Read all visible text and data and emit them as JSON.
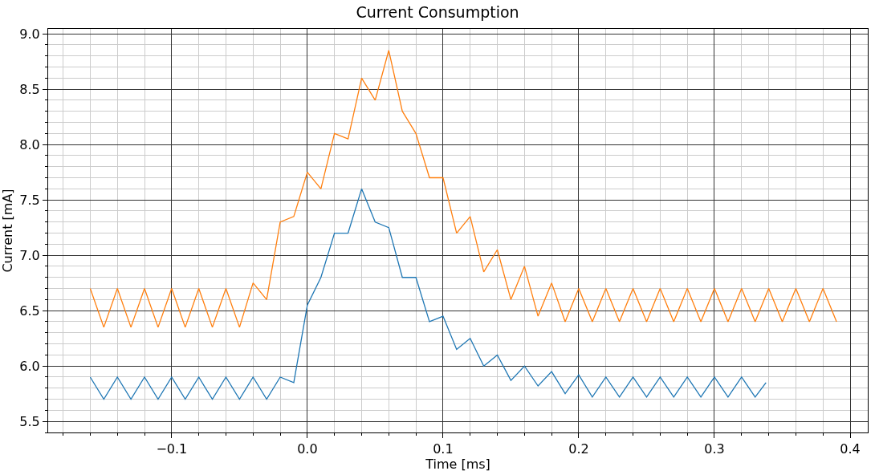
{
  "chart_data": {
    "type": "line",
    "title": "Current Consumption",
    "xlabel": "Time [ms]",
    "ylabel": "Current [mA]",
    "xlim": [
      -0.191,
      0.413
    ],
    "ylim": [
      5.4,
      9.044
    ],
    "xticks": [
      {
        "value": -0.1,
        "label": "−0.1"
      },
      {
        "value": 0.0,
        "label": "0.0"
      },
      0.1,
      0.2,
      0.3,
      0.4
    ],
    "yticks": [
      5.5,
      {
        "value": 6.0,
        "label": "6.0"
      },
      6.5,
      {
        "value": 7.0,
        "label": "7.0"
      },
      7.5,
      {
        "value": 8.0,
        "label": "8.0"
      },
      8.5,
      {
        "value": 9.0,
        "label": "9.0"
      }
    ],
    "grid": true,
    "line_style": "solid",
    "series": [
      {
        "color": "#1f77b4",
        "x": [
          -0.16,
          -0.15,
          -0.14,
          -0.13,
          -0.12,
          -0.11,
          -0.1,
          -0.09,
          -0.08,
          -0.07,
          -0.06,
          -0.05,
          -0.04,
          -0.03,
          -0.02,
          -0.01,
          0.0,
          0.01,
          0.02,
          0.03,
          0.04,
          0.05,
          0.06,
          0.07,
          0.08,
          0.09,
          0.1,
          0.11,
          0.12,
          0.13,
          0.14,
          0.15,
          0.16,
          0.17,
          0.18,
          0.19,
          0.2,
          0.21,
          0.22,
          0.23,
          0.24,
          0.25,
          0.26,
          0.27,
          0.28,
          0.29,
          0.3,
          0.31,
          0.32,
          0.33,
          0.338
        ],
        "values": [
          5.9,
          5.7,
          5.9,
          5.7,
          5.9,
          5.7,
          5.9,
          5.7,
          5.9,
          5.7,
          5.9,
          5.7,
          5.9,
          5.7,
          5.9,
          5.85,
          6.55,
          6.8,
          7.2,
          7.2,
          7.6,
          7.3,
          7.25,
          6.8,
          6.8,
          6.4,
          6.45,
          6.15,
          6.25,
          6.0,
          6.1,
          5.87,
          6.0,
          5.82,
          5.95,
          5.75,
          5.92,
          5.72,
          5.9,
          5.72,
          5.9,
          5.72,
          5.9,
          5.72,
          5.9,
          5.72,
          5.9,
          5.72,
          5.9,
          5.72,
          5.85
        ]
      },
      {
        "color": "#ff7f0e",
        "x": [
          -0.16,
          -0.15,
          -0.14,
          -0.13,
          -0.12,
          -0.11,
          -0.1,
          -0.09,
          -0.08,
          -0.07,
          -0.06,
          -0.05,
          -0.04,
          -0.03,
          -0.02,
          -0.01,
          0.0,
          0.01,
          0.02,
          0.03,
          0.04,
          0.05,
          0.06,
          0.07,
          0.08,
          0.09,
          0.1,
          0.11,
          0.12,
          0.13,
          0.14,
          0.15,
          0.16,
          0.17,
          0.18,
          0.19,
          0.2,
          0.21,
          0.22,
          0.23,
          0.24,
          0.25,
          0.26,
          0.27,
          0.28,
          0.29,
          0.3,
          0.31,
          0.32,
          0.33,
          0.34,
          0.35,
          0.36,
          0.37,
          0.38,
          0.39
        ],
        "values": [
          6.7,
          6.35,
          6.7,
          6.35,
          6.7,
          6.35,
          6.7,
          6.35,
          6.7,
          6.35,
          6.7,
          6.35,
          6.75,
          6.6,
          7.3,
          7.35,
          7.75,
          7.6,
          8.1,
          8.05,
          8.6,
          8.4,
          8.85,
          8.3,
          8.1,
          7.7,
          7.7,
          7.2,
          7.35,
          6.85,
          7.05,
          6.6,
          6.9,
          6.45,
          6.75,
          6.4,
          6.7,
          6.4,
          6.7,
          6.4,
          6.7,
          6.4,
          6.7,
          6.4,
          6.7,
          6.4,
          6.7,
          6.4,
          6.7,
          6.4,
          6.7,
          6.4,
          6.7,
          6.4,
          6.7,
          6.4
        ]
      }
    ]
  }
}
